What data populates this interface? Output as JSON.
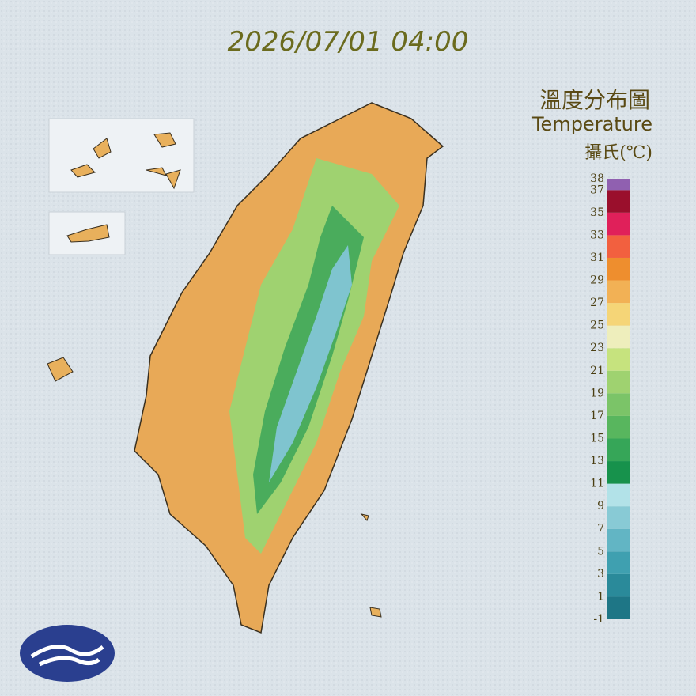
{
  "header": {
    "timestamp": "2026/07/01 04:00"
  },
  "legend": {
    "title_zh": "溫度分布圖",
    "title_en": "Temperature",
    "unit": "攝氏(℃)",
    "ticks": [
      -1,
      1,
      3,
      5,
      7,
      9,
      11,
      13,
      15,
      17,
      19,
      21,
      23,
      25,
      27,
      29,
      31,
      33,
      35,
      37,
      38
    ],
    "colors": [
      "#1e7686",
      "#2a8a9a",
      "#3fa0b0",
      "#62b5c4",
      "#88cad5",
      "#b2e2e8",
      "#17924c",
      "#36a658",
      "#58b65e",
      "#7bc468",
      "#9fd270",
      "#c6e37e",
      "#eeeebc",
      "#f5d577",
      "#f2b155",
      "#ee8e2e",
      "#f2603f",
      "#e0205a",
      "#9a0f2c",
      "#9060b0"
    ]
  }
}
